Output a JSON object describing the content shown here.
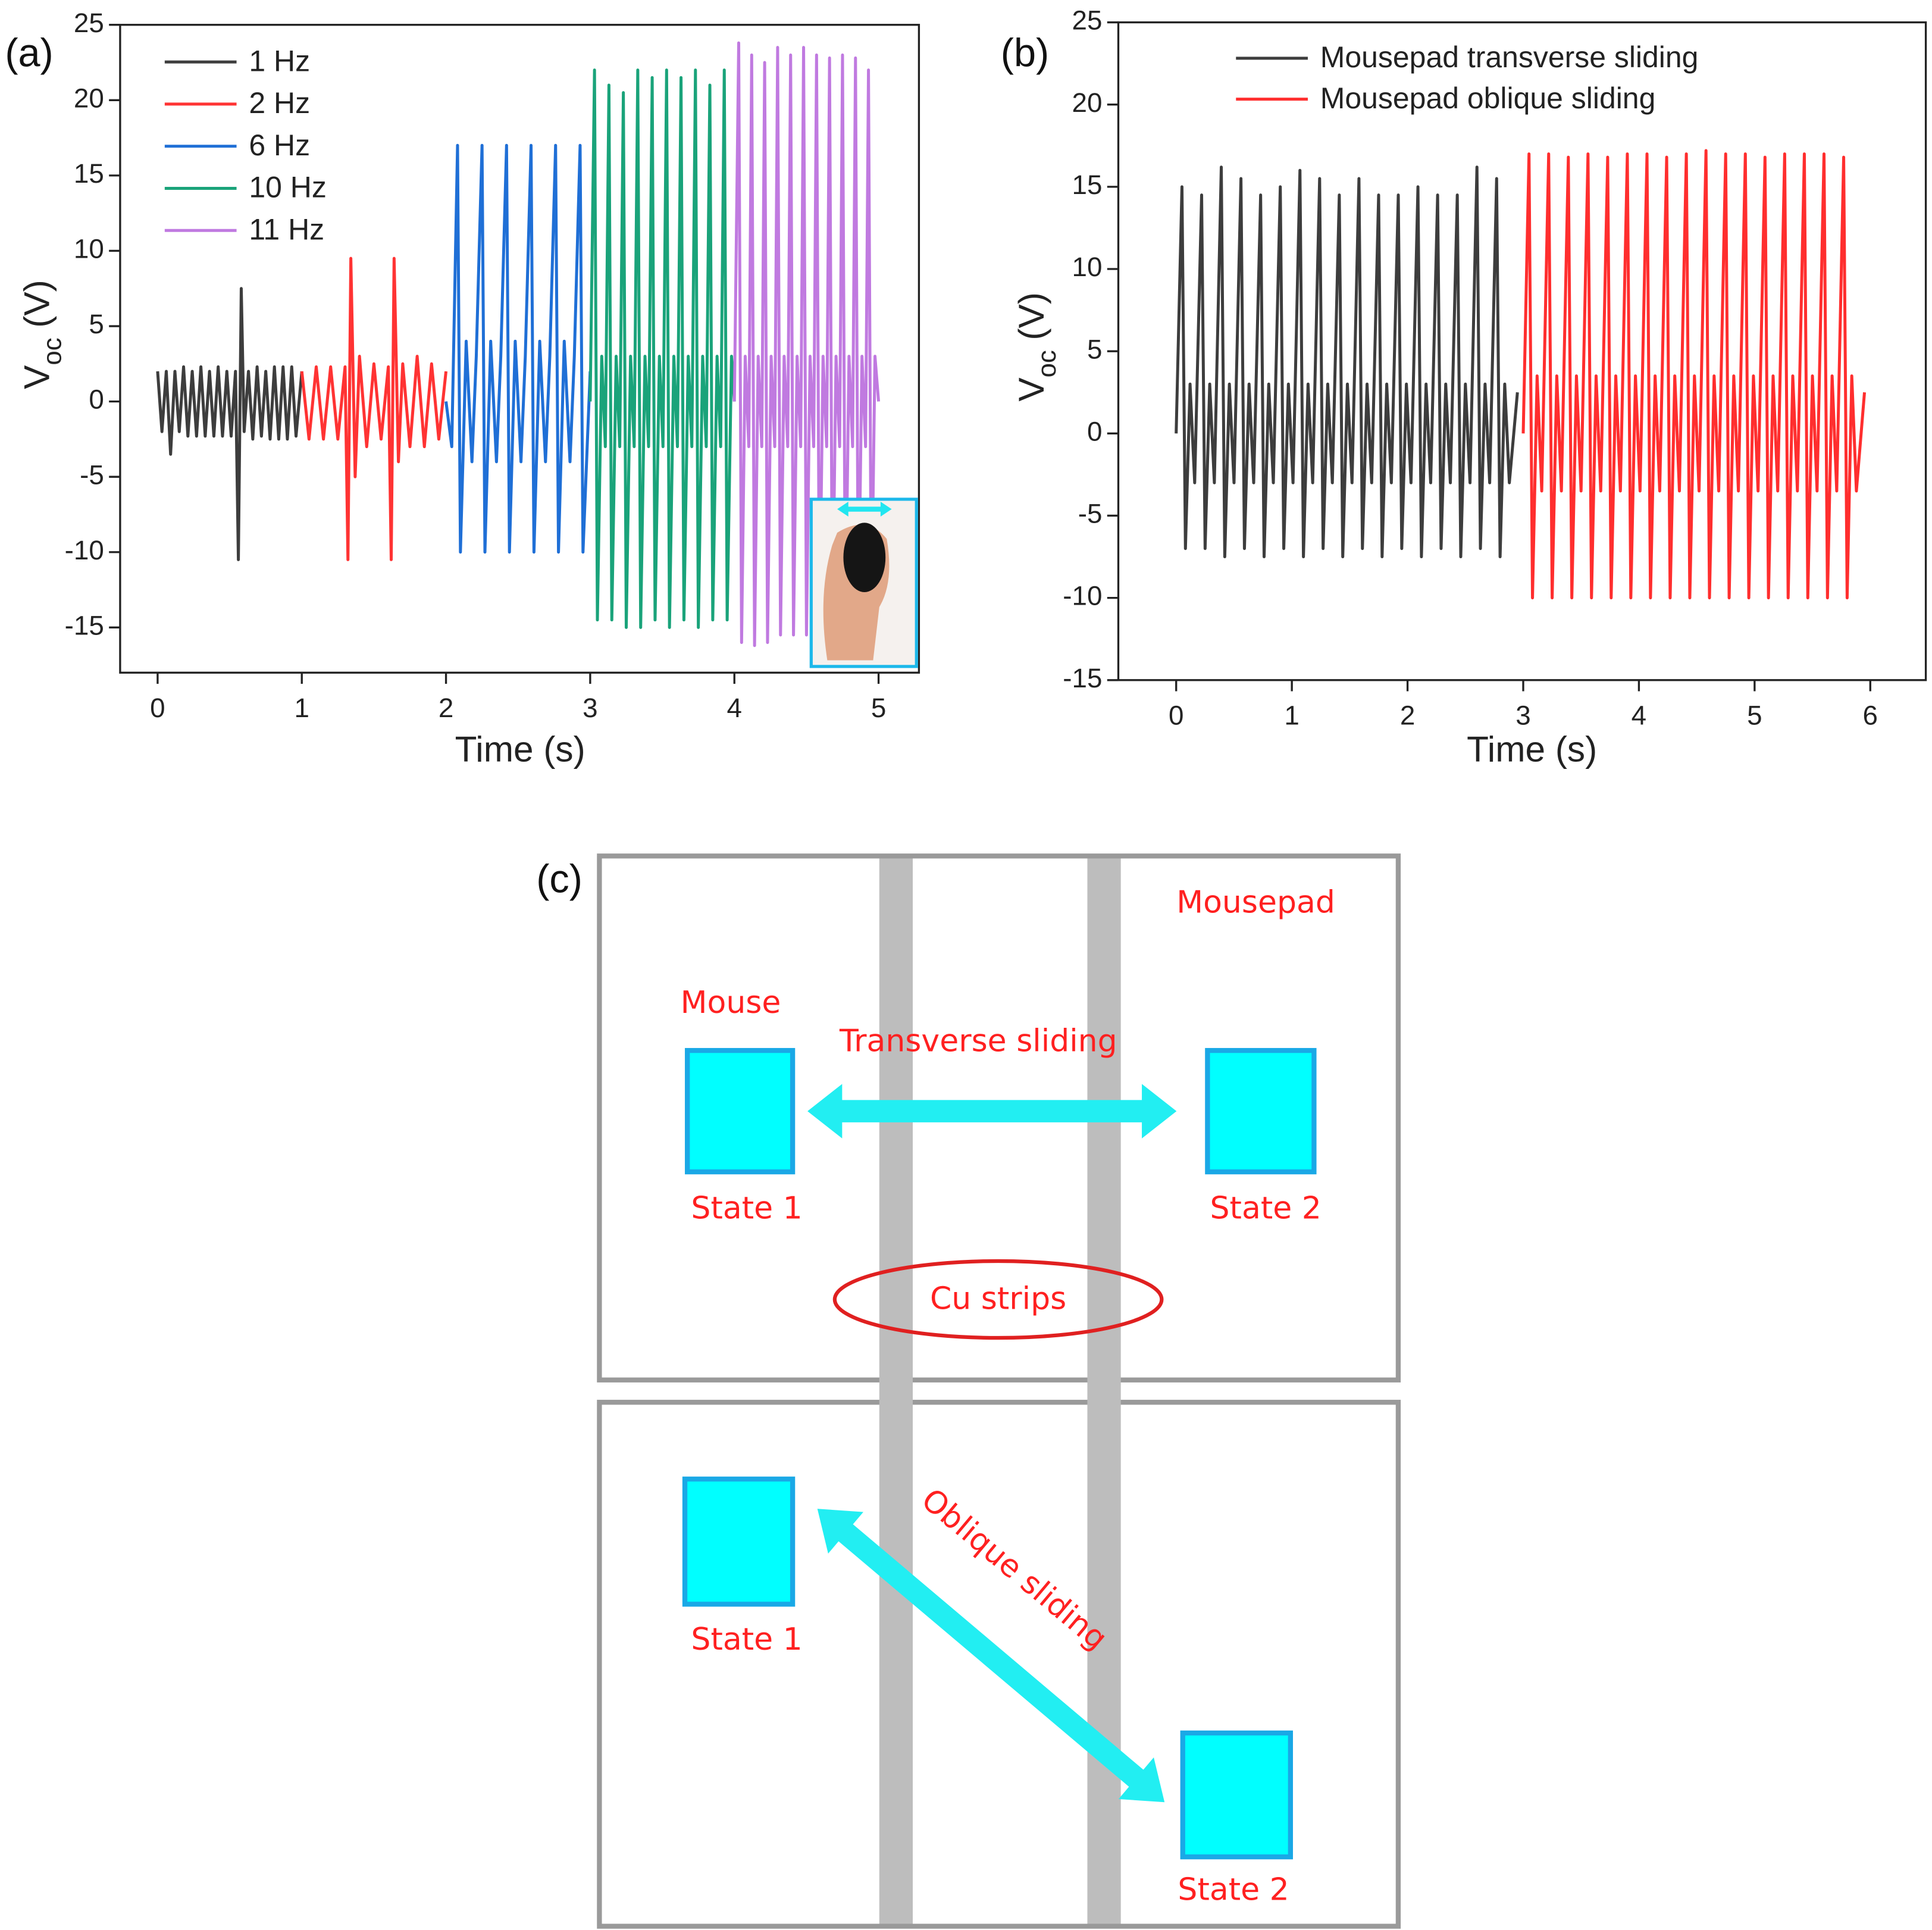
{
  "chart_data": [
    {
      "type": "line",
      "panel": "(a)",
      "xlabel": "Time (s)",
      "ylabel": {
        "text": "V",
        "subscript": "oc",
        "unit": "(V)"
      },
      "xlim": [
        -0.26,
        5.28
      ],
      "ylim": [
        -18,
        25
      ],
      "xticks": [
        0,
        1,
        2,
        3,
        4,
        5
      ],
      "yticks": [
        -15,
        -10,
        -5,
        0,
        5,
        10,
        15,
        20,
        25
      ],
      "legend": "upper left",
      "series": [
        {
          "name": "1 Hz",
          "color": "#3d3d3d",
          "x": [
            0,
            0.03,
            0.06,
            0.09,
            0.12,
            0.15,
            0.18,
            0.21,
            0.24,
            0.27,
            0.3,
            0.33,
            0.36,
            0.39,
            0.42,
            0.45,
            0.48,
            0.51,
            0.54,
            0.56,
            0.58,
            0.6,
            0.63,
            0.66,
            0.69,
            0.72,
            0.75,
            0.78,
            0.81,
            0.84,
            0.87,
            0.9,
            0.93,
            0.96,
            1.0
          ],
          "values": [
            2,
            -2,
            2,
            -3.5,
            2,
            -2,
            2.3,
            -2.3,
            2,
            -2.3,
            2.3,
            -2.3,
            2,
            -2.3,
            2.3,
            -2.3,
            2,
            -2.3,
            2,
            -10.5,
            7.5,
            -2,
            2,
            -2.5,
            2.3,
            -2.3,
            2,
            -2.5,
            2.3,
            -2.5,
            2.3,
            -2.5,
            2.3,
            -2.3,
            2
          ]
        },
        {
          "name": "2 Hz",
          "color": "#ff3333",
          "x": [
            1,
            1.05,
            1.1,
            1.15,
            1.2,
            1.25,
            1.3,
            1.32,
            1.34,
            1.37,
            1.4,
            1.45,
            1.5,
            1.55,
            1.6,
            1.62,
            1.64,
            1.67,
            1.7,
            1.75,
            1.8,
            1.85,
            1.9,
            1.95,
            2
          ],
          "values": [
            2,
            -2.5,
            2.3,
            -2.5,
            2.3,
            -2.5,
            2.3,
            -10.5,
            9.5,
            -5,
            3,
            -3,
            2.5,
            -2.5,
            2.3,
            -10.5,
            9.5,
            -4,
            2.5,
            -3,
            3,
            -3,
            2.5,
            -2.5,
            2
          ]
        },
        {
          "name": "6 Hz",
          "color": "#1f6fd6",
          "x": [
            2,
            2.04,
            2.08,
            2.1,
            2.14,
            2.18,
            2.21,
            2.25,
            2.27,
            2.31,
            2.35,
            2.38,
            2.42,
            2.44,
            2.48,
            2.52,
            2.55,
            2.59,
            2.61,
            2.65,
            2.69,
            2.72,
            2.76,
            2.78,
            2.82,
            2.86,
            2.89,
            2.93,
            2.95,
            3
          ],
          "values": [
            0,
            -3,
            17,
            -10,
            4,
            -4,
            3,
            17,
            -10,
            4,
            -4,
            3,
            17,
            -10,
            4,
            -4,
            3,
            17,
            -10,
            4,
            -4,
            3,
            17,
            -10,
            4,
            -4,
            3,
            17,
            -10,
            2
          ]
        },
        {
          "name": "10 Hz",
          "color": "#1aa37a",
          "x": [
            3,
            3.03,
            3.05,
            3.08,
            3.105,
            3.13,
            3.15,
            3.18,
            3.205,
            3.23,
            3.25,
            3.28,
            3.305,
            3.33,
            3.35,
            3.38,
            3.405,
            3.43,
            3.45,
            3.48,
            3.505,
            3.53,
            3.55,
            3.58,
            3.605,
            3.63,
            3.65,
            3.68,
            3.705,
            3.73,
            3.75,
            3.78,
            3.805,
            3.83,
            3.85,
            3.88,
            3.905,
            3.93,
            3.95,
            3.98,
            4
          ],
          "values": [
            0,
            22,
            -14.5,
            3,
            -3,
            21,
            -14.5,
            3,
            -3,
            20.5,
            -15,
            3,
            -3,
            22,
            -15,
            3,
            -3,
            21.5,
            -14.5,
            3,
            -3,
            22,
            -15,
            3,
            -3,
            21.5,
            -14.5,
            3,
            -3,
            22,
            -15,
            3,
            -3,
            21,
            -14.5,
            3,
            -3,
            22,
            -14.5,
            3,
            0
          ]
        },
        {
          "name": "11 Hz",
          "color": "#c07ae0",
          "x": [
            4,
            4.03,
            4.05,
            4.075,
            4.1,
            4.12,
            4.14,
            4.165,
            4.19,
            4.21,
            4.23,
            4.255,
            4.28,
            4.3,
            4.32,
            4.345,
            4.37,
            4.39,
            4.41,
            4.435,
            4.46,
            4.48,
            4.5,
            4.525,
            4.55,
            4.57,
            4.59,
            4.615,
            4.64,
            4.66,
            4.68,
            4.705,
            4.73,
            4.75,
            4.77,
            4.795,
            4.82,
            4.84,
            4.86,
            4.885,
            4.91,
            4.93,
            4.95,
            4.975,
            5
          ],
          "values": [
            0,
            23.8,
            -16,
            3,
            -3,
            23,
            -16.2,
            3,
            -3,
            22.5,
            -16,
            3,
            -3,
            23.5,
            -15.5,
            3,
            -3,
            23,
            -15.5,
            3,
            -3,
            23.5,
            -15.5,
            3,
            -3,
            23,
            -15.5,
            3,
            -3,
            22.8,
            -15.5,
            3,
            -3,
            23,
            -15.5,
            3,
            -3,
            22.8,
            -15,
            3,
            -3,
            22,
            -15,
            3,
            0
          ]
        }
      ]
    },
    {
      "type": "line",
      "panel": "(b)",
      "xlabel": "Time (s)",
      "ylabel": {
        "text": "V",
        "subscript": "oc",
        "unit": "(V)"
      },
      "xlim": [
        -0.5,
        6.48
      ],
      "ylim": [
        -15,
        25
      ],
      "xticks": [
        0,
        1,
        2,
        3,
        4,
        5,
        6
      ],
      "yticks": [
        -15,
        -10,
        -5,
        0,
        5,
        10,
        15,
        20,
        25
      ],
      "legend": "upper left",
      "series": [
        {
          "name": "Mousepad transverse sliding",
          "color": "#3d3d3d",
          "x": [
            0,
            0.05,
            0.08,
            0.12,
            0.16,
            0.22,
            0.25,
            0.29,
            0.33,
            0.39,
            0.42,
            0.46,
            0.5,
            0.56,
            0.59,
            0.63,
            0.67,
            0.73,
            0.76,
            0.8,
            0.84,
            0.9,
            0.93,
            0.97,
            1.01,
            1.07,
            1.1,
            1.14,
            1.18,
            1.24,
            1.27,
            1.31,
            1.35,
            1.41,
            1.44,
            1.48,
            1.52,
            1.58,
            1.61,
            1.65,
            1.69,
            1.75,
            1.78,
            1.82,
            1.86,
            1.92,
            1.95,
            1.99,
            2.03,
            2.09,
            2.12,
            2.16,
            2.2,
            2.26,
            2.29,
            2.33,
            2.37,
            2.43,
            2.46,
            2.5,
            2.54,
            2.6,
            2.63,
            2.67,
            2.71,
            2.77,
            2.8,
            2.84,
            2.88,
            2.95
          ],
          "values": [
            0,
            15,
            -7,
            3,
            -3,
            14.5,
            -7,
            3,
            -3,
            16.2,
            -7.5,
            3,
            -3,
            15.5,
            -7,
            3,
            -3,
            14.5,
            -7.5,
            3,
            -3,
            15,
            -7,
            3,
            -3,
            16,
            -7.5,
            3,
            -3,
            15.5,
            -7,
            3,
            -3,
            14.5,
            -7.5,
            3,
            -3,
            15.5,
            -7,
            3,
            -3,
            14.5,
            -7.5,
            3,
            -3,
            14.5,
            -7,
            3,
            -3,
            15,
            -7.5,
            3,
            -3,
            14.5,
            -7,
            3,
            -3,
            14.5,
            -7.5,
            3,
            -3,
            16.2,
            -7,
            3,
            -3,
            15.5,
            -7.5,
            3,
            -3,
            2.5
          ]
        },
        {
          "name": "Mousepad oblique sliding",
          "color": "#ff2e2e",
          "x": [
            3,
            3.05,
            3.08,
            3.12,
            3.16,
            3.22,
            3.25,
            3.29,
            3.33,
            3.39,
            3.42,
            3.46,
            3.5,
            3.56,
            3.59,
            3.63,
            3.67,
            3.73,
            3.76,
            3.8,
            3.84,
            3.9,
            3.93,
            3.97,
            4.01,
            4.07,
            4.1,
            4.14,
            4.18,
            4.24,
            4.27,
            4.31,
            4.35,
            4.41,
            4.44,
            4.48,
            4.52,
            4.58,
            4.61,
            4.65,
            4.69,
            4.75,
            4.78,
            4.82,
            4.86,
            4.92,
            4.95,
            4.99,
            5.03,
            5.09,
            5.12,
            5.16,
            5.2,
            5.26,
            5.29,
            5.33,
            5.37,
            5.43,
            5.46,
            5.5,
            5.54,
            5.6,
            5.63,
            5.67,
            5.71,
            5.77,
            5.8,
            5.84,
            5.88,
            5.95
          ],
          "values": [
            0,
            17,
            -10,
            3.5,
            -3.5,
            17,
            -10,
            3.5,
            -3.5,
            16.8,
            -10,
            3.5,
            -3.5,
            17,
            -10,
            3.5,
            -3.5,
            16.8,
            -10,
            3.5,
            -3.5,
            17,
            -10,
            3.5,
            -3.5,
            17,
            -10,
            3.5,
            -3.5,
            16.8,
            -10,
            3.5,
            -3.5,
            17,
            -10,
            3.5,
            -3.5,
            17.2,
            -10,
            3.5,
            -3.5,
            17,
            -10,
            3.5,
            -3.5,
            17,
            -10,
            3.5,
            -3.5,
            16.8,
            -10,
            3.5,
            -3.5,
            17,
            -10,
            3.5,
            -3.5,
            17,
            -10,
            3.5,
            -3.5,
            17,
            -10,
            3.5,
            -3.5,
            16.8,
            -10,
            3.5,
            -3.5,
            2.5
          ]
        }
      ]
    }
  ],
  "diagram": {
    "panel": "(c)",
    "mousepad": "Mousepad",
    "mouse": "Mouse",
    "transverse": "Transverse sliding",
    "top_state1": "State 1",
    "top_state2": "State 2",
    "cu_strips": "Cu strips",
    "oblique": "Oblique sliding",
    "bottom_state1": "State 1",
    "bottom_state2": "State 2"
  }
}
